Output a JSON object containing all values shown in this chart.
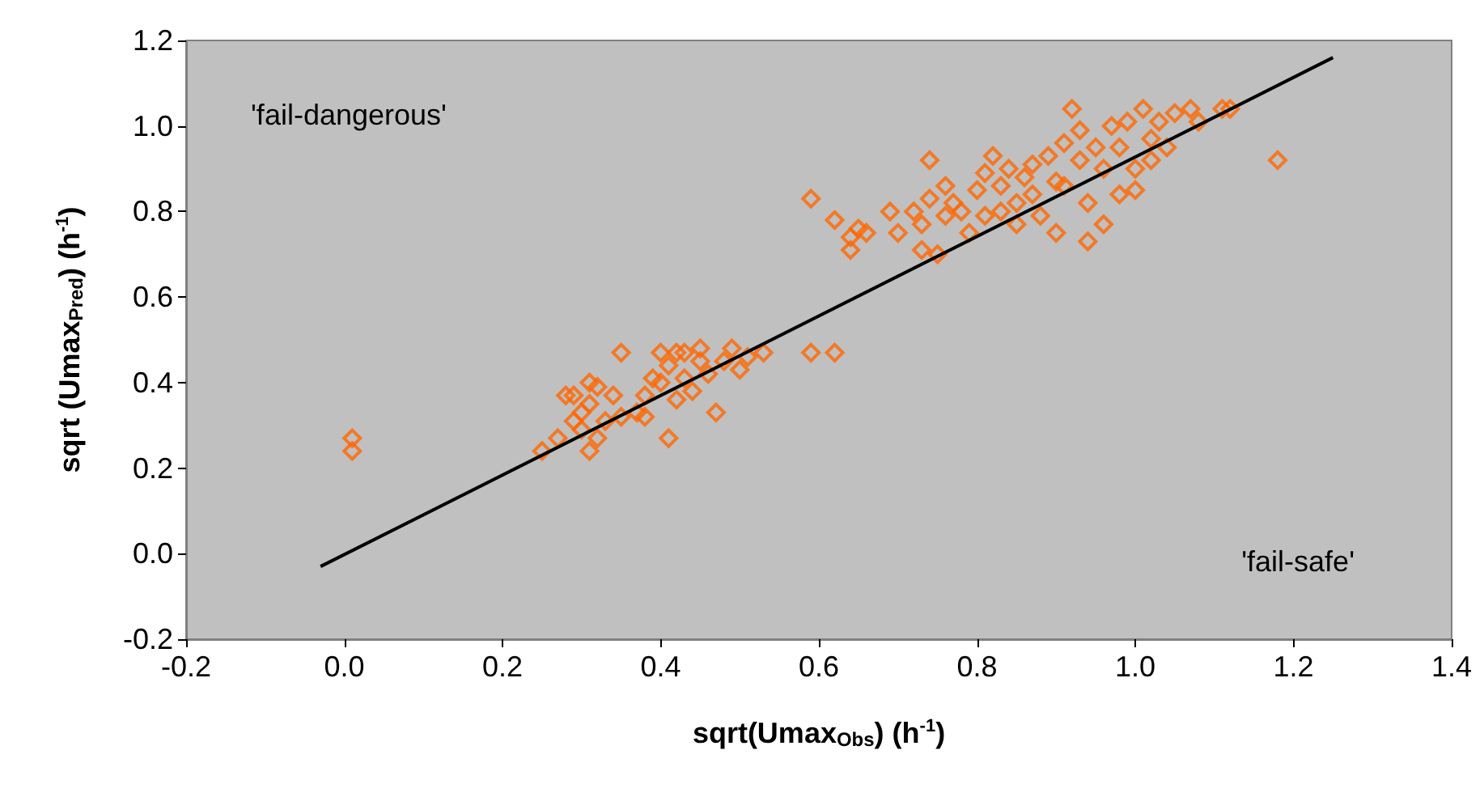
{
  "chart_data": {
    "type": "scatter",
    "xlabel": "sqrt(Umax$_{Obs}$) (h$^{-1}$)",
    "ylabel": "sqrt (Umax$_{Pred}$) (h$^{-1}$)",
    "annotations": [
      "'fail-dangerous'",
      "'fail-safe'"
    ],
    "xlim": [
      -0.2,
      1.4
    ],
    "xticks": [
      {
        "value": -0.2,
        "label": "-0.2"
      },
      {
        "value": 0,
        "label": "0.0"
      },
      {
        "value": 0.2,
        "label": "0.2"
      },
      {
        "value": 0.4,
        "label": "0.4"
      },
      {
        "value": 0.6,
        "label": "0.6"
      },
      {
        "value": 0.8,
        "label": "0.8"
      },
      {
        "value": 1,
        "label": "1.0"
      },
      {
        "value": 1.2,
        "label": "1.2"
      },
      {
        "value": 1.4,
        "label": "1.4"
      }
    ],
    "ylim": [
      -0.2,
      1.2
    ],
    "yticks": [
      {
        "value": -0.2,
        "label": "-0.2"
      },
      {
        "value": 0,
        "label": "0.0"
      },
      {
        "value": 0.2,
        "label": "0.2"
      },
      {
        "value": 0.4,
        "label": "0.4"
      },
      {
        "value": 0.6,
        "label": "0.6"
      },
      {
        "value": 0.8,
        "label": "0.8"
      },
      {
        "value": 1,
        "label": "1.0"
      },
      {
        "value": 1.2,
        "label": "1.2"
      }
    ],
    "grid": false,
    "marker": "diamond",
    "series": [
      {
        "color": "#ff6600",
        "x": [
          0.01,
          0.01,
          0.25,
          0.27,
          0.28,
          0.29,
          0.29,
          0.3,
          0.3,
          0.31,
          0.31,
          0.31,
          0.32,
          0.32,
          0.33,
          0.34,
          0.35,
          0.35,
          0.37,
          0.38,
          0.38,
          0.39,
          0.4,
          0.4,
          0.41,
          0.41,
          0.42,
          0.42,
          0.43,
          0.43,
          0.44,
          0.45,
          0.45,
          0.46,
          0.47,
          0.48,
          0.49,
          0.5,
          0.51,
          0.53,
          0.59,
          0.62,
          0.59,
          0.62,
          0.64,
          0.64,
          0.65,
          0.66,
          0.69,
          0.7,
          0.72,
          0.73,
          0.73,
          0.74,
          0.74,
          0.75,
          0.76,
          0.76,
          0.77,
          0.78,
          0.79,
          0.8,
          0.81,
          0.81,
          0.82,
          0.83,
          0.83,
          0.84,
          0.85,
          0.85,
          0.86,
          0.87,
          0.87,
          0.88,
          0.89,
          0.9,
          0.9,
          0.91,
          0.91,
          0.92,
          0.93,
          0.93,
          0.94,
          0.94,
          0.95,
          0.96,
          0.96,
          0.97,
          0.98,
          0.98,
          0.99,
          1.0,
          1.0,
          1.01,
          1.02,
          1.02,
          1.03,
          1.04,
          1.05,
          1.07,
          1.08,
          1.11,
          1.12,
          1.18
        ],
        "values": [
          0.27,
          0.24,
          0.24,
          0.27,
          0.37,
          0.31,
          0.37,
          0.33,
          0.29,
          0.4,
          0.35,
          0.24,
          0.27,
          0.39,
          0.31,
          0.37,
          0.32,
          0.47,
          0.33,
          0.37,
          0.32,
          0.41,
          0.47,
          0.4,
          0.44,
          0.27,
          0.47,
          0.36,
          0.41,
          0.47,
          0.38,
          0.45,
          0.48,
          0.42,
          0.33,
          0.45,
          0.48,
          0.43,
          0.46,
          0.47,
          0.47,
          0.47,
          0.83,
          0.78,
          0.71,
          0.74,
          0.76,
          0.75,
          0.8,
          0.75,
          0.8,
          0.71,
          0.77,
          0.92,
          0.83,
          0.7,
          0.79,
          0.86,
          0.82,
          0.8,
          0.75,
          0.85,
          0.89,
          0.79,
          0.93,
          0.8,
          0.86,
          0.9,
          0.82,
          0.77,
          0.88,
          0.84,
          0.91,
          0.79,
          0.93,
          0.87,
          0.75,
          0.96,
          0.86,
          1.04,
          0.92,
          0.99,
          0.82,
          0.73,
          0.95,
          0.77,
          0.9,
          1.0,
          0.95,
          0.84,
          1.01,
          0.9,
          0.85,
          1.04,
          0.97,
          0.92,
          1.01,
          0.95,
          1.03,
          1.04,
          1.01,
          1.04,
          1.04,
          0.92
        ]
      },
      {
        "type": "line",
        "color": "#000000",
        "marker": "none",
        "line_style": "solid",
        "x": [
          -0.03,
          1.25
        ],
        "values": [
          -0.03,
          1.16
        ]
      }
    ]
  }
}
